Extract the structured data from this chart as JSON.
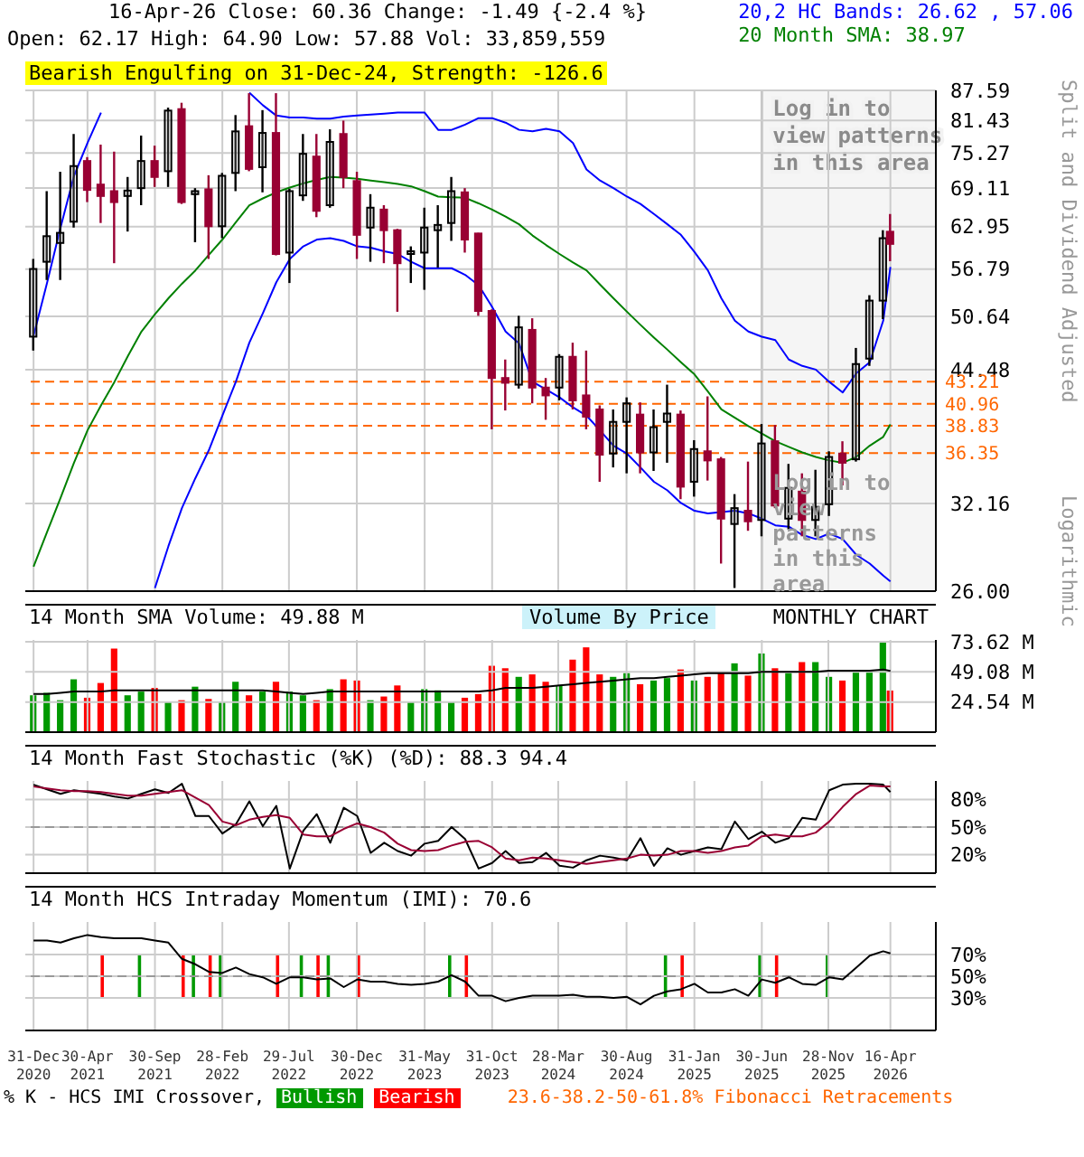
{
  "chart_data": [
    {
      "type": "candlestick",
      "title": "16-Apr-26   Close: 60.36   Change: -1.49 {-2.4 %}",
      "subtitle": "Open: 62.17   High: 64.90   Low: 57.88   Vol: 33,859,559",
      "ylabel": "Split and Dividend Adjusted",
      "annotations": [
        "Bearish Engulfing on 31-Dec-24, Strength: -126.6",
        "Log in to view patterns in this area",
        "Logarithmic"
      ],
      "x": [
        "2020-12-31",
        "2021-01-31",
        "2021-02-28",
        "2021-03-31",
        "2021-04-30",
        "2021-05-31",
        "2021-06-30",
        "2021-07-31",
        "2021-08-31",
        "2021-09-30",
        "2021-10-31",
        "2021-11-30",
        "2021-12-31",
        "2022-01-31",
        "2022-02-28",
        "2022-03-31",
        "2022-04-30",
        "2022-05-31",
        "2022-06-30",
        "2022-07-31",
        "2022-08-31",
        "2022-09-30",
        "2022-10-31",
        "2022-11-30",
        "2022-12-31",
        "2023-01-31",
        "2023-02-28",
        "2023-03-31",
        "2023-04-30",
        "2023-05-31",
        "2023-06-30",
        "2023-07-31",
        "2023-08-31",
        "2023-09-30",
        "2023-10-31",
        "2023-11-30",
        "2023-12-31",
        "2024-01-31",
        "2024-02-29",
        "2024-03-31",
        "2024-04-30",
        "2024-05-31",
        "2024-06-30",
        "2024-07-31",
        "2024-08-31",
        "2024-09-30",
        "2024-10-31",
        "2024-11-30",
        "2024-12-31",
        "2025-01-31",
        "2025-02-28",
        "2025-03-31",
        "2025-04-30",
        "2025-05-31",
        "2025-06-30",
        "2025-07-31",
        "2025-08-31",
        "2025-09-30",
        "2025-10-31",
        "2025-11-30",
        "2025-12-31",
        "2026-01-31",
        "2026-02-28",
        "2026-03-31",
        "2026-04-16"
      ],
      "ohlc": [
        [
          48.2,
          58.2,
          46.6,
          56.8
        ],
        [
          57.8,
          68.6,
          55.3,
          61.5
        ],
        [
          60.5,
          71.9,
          55.3,
          62.0
        ],
        [
          63.7,
          78.8,
          62.8,
          72.9
        ],
        [
          73.8,
          74.5,
          66.8,
          68.8
        ],
        [
          69.7,
          76.8,
          63.5,
          67.8
        ],
        [
          68.6,
          75.5,
          57.6,
          66.8
        ],
        [
          67.8,
          71.0,
          62.2,
          68.7
        ],
        [
          69.1,
          78.5,
          66.3,
          73.8
        ],
        [
          73.8,
          76.6,
          69.3,
          71.0
        ],
        [
          72.0,
          84.0,
          69.3,
          83.4
        ],
        [
          83.7,
          85.0,
          66.5,
          66.8
        ],
        [
          68.1,
          69.1,
          60.6,
          68.6
        ],
        [
          68.9,
          71.3,
          58.2,
          63.0
        ],
        [
          63.0,
          71.7,
          61.2,
          71.2
        ],
        [
          71.7,
          82.5,
          68.6,
          79.3
        ],
        [
          80.3,
          87.0,
          72.0,
          72.4
        ],
        [
          72.7,
          83.5,
          68.4,
          79.0
        ],
        [
          79.0,
          87.0,
          58.7,
          58.9
        ],
        [
          59.1,
          69.0,
          54.9,
          68.6
        ],
        [
          67.9,
          78.8,
          67.0,
          75.1
        ],
        [
          74.6,
          78.8,
          64.4,
          65.4
        ],
        [
          66.3,
          79.7,
          65.9,
          77.3
        ],
        [
          78.8,
          81.4,
          69.1,
          71.0
        ],
        [
          70.3,
          71.9,
          58.2,
          61.7
        ],
        [
          62.8,
          68.1,
          57.8,
          65.9
        ],
        [
          65.6,
          66.3,
          57.6,
          62.4
        ],
        [
          62.4,
          62.6,
          51.2,
          57.6
        ],
        [
          58.9,
          60.0,
          54.9,
          59.3
        ],
        [
          59.1,
          65.9,
          54.0,
          62.8
        ],
        [
          62.4,
          66.3,
          57.0,
          63.2
        ],
        [
          63.5,
          71.0,
          60.8,
          68.6
        ],
        [
          68.4,
          69.1,
          59.1,
          61.0
        ],
        [
          61.9,
          62.0,
          50.7,
          51.3
        ],
        [
          51.3,
          51.5,
          38.5,
          43.6
        ],
        [
          43.6,
          45.6,
          40.3,
          43.1
        ],
        [
          42.9,
          50.7,
          42.5,
          49.3
        ],
        [
          49.0,
          50.4,
          41.0,
          42.6
        ],
        [
          42.6,
          43.6,
          39.4,
          41.8
        ],
        [
          42.6,
          46.2,
          41.3,
          45.9
        ],
        [
          45.9,
          47.5,
          40.4,
          41.3
        ],
        [
          41.8,
          46.6,
          38.5,
          39.7
        ],
        [
          40.4,
          40.8,
          33.9,
          36.2
        ],
        [
          36.3,
          40.4,
          35.1,
          39.2
        ],
        [
          39.2,
          41.6,
          34.6,
          41.0
        ],
        [
          39.9,
          41.1,
          34.6,
          36.4
        ],
        [
          36.4,
          40.4,
          34.8,
          38.7
        ],
        [
          39.2,
          42.9,
          35.5,
          40.0
        ],
        [
          39.9,
          40.3,
          32.5,
          33.5
        ],
        [
          33.9,
          37.5,
          32.7,
          36.7
        ],
        [
          36.5,
          41.7,
          34.0,
          35.7
        ],
        [
          35.8,
          36.0,
          27.8,
          31.0
        ],
        [
          30.6,
          32.9,
          26.2,
          31.8
        ],
        [
          31.6,
          35.6,
          30.1,
          30.8
        ],
        [
          30.9,
          39.0,
          29.7,
          37.2
        ],
        [
          37.4,
          38.9,
          31.8,
          32.0
        ],
        [
          31.0,
          35.4,
          30.2,
          33.4
        ],
        [
          33.1,
          34.6,
          29.7,
          30.9
        ],
        [
          30.9,
          34.9,
          29.7,
          31.9
        ],
        [
          32.1,
          36.5,
          31.2,
          36.0
        ],
        [
          36.3,
          37.4,
          33.6,
          35.5
        ],
        [
          35.8,
          46.9,
          35.6,
          45.1
        ],
        [
          45.7,
          53.3,
          44.9,
          52.6
        ],
        [
          52.6,
          62.4,
          50.3,
          61.2
        ],
        [
          62.17,
          64.9,
          57.88,
          60.36
        ]
      ],
      "colors": [
        "#ffffff",
        "#ffffff",
        "#ffffff",
        "#ffffff",
        "#990033",
        "#990033",
        "#990033",
        "#ffffff",
        "#ffffff",
        "#990033",
        "#ffffff",
        "#990033",
        "#ffffff",
        "#990033",
        "#ffffff",
        "#ffffff",
        "#990033",
        "#ffffff",
        "#990033",
        "#ffffff",
        "#ffffff",
        "#990033",
        "#ffffff",
        "#990033",
        "#990033",
        "#ffffff",
        "#990033",
        "#990033",
        "#ffffff",
        "#ffffff",
        "#ffffff",
        "#ffffff",
        "#990033",
        "#990033",
        "#990033",
        "#990033",
        "#ffffff",
        "#990033",
        "#990033",
        "#ffffff",
        "#990033",
        "#990033",
        "#990033",
        "#ffffff",
        "#ffffff",
        "#990033",
        "#ffffff",
        "#ffffff",
        "#990033",
        "#ffffff",
        "#990033",
        "#990033",
        "#ffffff",
        "#990033",
        "#ffffff",
        "#990033",
        "#ffffff",
        "#990033",
        "#ffffff",
        "#ffffff",
        "#990033",
        "#ffffff",
        "#ffffff",
        "#ffffff",
        "#990033"
      ],
      "series": [
        {
          "type": "line",
          "name": "20,2 HC Bands: 26.62 , 57.06",
          "color": "#0000ff",
          "values": [
            48.3,
            54.9,
            62.8,
            71.2,
            77.1,
            83.0,
            null,
            null,
            null,
            null,
            null,
            null,
            null,
            null,
            null,
            null,
            87.1,
            84.5,
            82.4,
            82.0,
            82.0,
            81.8,
            81.8,
            82.2,
            82.4,
            82.6,
            82.8,
            83.0,
            83.0,
            83.0,
            79.6,
            79.6,
            80.6,
            81.9,
            81.9,
            81.0,
            79.6,
            79.3,
            79.8,
            79.3,
            77.1,
            72.3,
            70.4,
            69.1,
            67.7,
            66.5,
            64.9,
            63.3,
            61.7,
            59.2,
            56.6,
            52.9,
            50.1,
            48.8,
            48.2,
            47.8,
            45.6,
            44.9,
            44.5,
            43.2,
            42.1,
            44.1,
            45.3,
            50.1,
            57.06
          ]
        },
        {
          "type": "line",
          "color": "#0000ff",
          "values": [
            null,
            null,
            null,
            null,
            null,
            null,
            null,
            null,
            null,
            26.2,
            29.0,
            31.8,
            34.2,
            36.6,
            39.8,
            43.2,
            47.5,
            51.0,
            55.0,
            58.2,
            60.0,
            61.0,
            61.2,
            60.8,
            60.0,
            59.8,
            59.3,
            58.9,
            57.8,
            56.9,
            56.9,
            56.9,
            56.0,
            54.6,
            51.8,
            48.8,
            47.4,
            43.2,
            42.4,
            41.6,
            40.6,
            39.8,
            38.4,
            37.0,
            36.3,
            35.1,
            33.9,
            33.2,
            32.2,
            31.6,
            31.4,
            31.5,
            31.6,
            31.4,
            31.0,
            30.5,
            30.4,
            29.8,
            29.5,
            29.9,
            29.5,
            28.4,
            27.8,
            27.0,
            26.62
          ]
        },
        {
          "type": "line",
          "name": "20 Month SMA: 38.97",
          "color": "#008000",
          "values": [
            27.6,
            30.0,
            32.6,
            35.5,
            38.4,
            40.8,
            43.2,
            46.0,
            48.8,
            50.9,
            52.9,
            54.8,
            56.6,
            58.8,
            61.0,
            63.6,
            66.3,
            67.4,
            68.4,
            69.2,
            69.9,
            70.5,
            71.0,
            70.9,
            70.7,
            70.4,
            70.1,
            69.8,
            69.4,
            68.6,
            67.7,
            67.6,
            67.5,
            66.6,
            65.6,
            64.5,
            63.3,
            61.6,
            60.2,
            58.9,
            57.7,
            56.6,
            54.7,
            52.9,
            51.2,
            49.6,
            48.1,
            46.7,
            45.3,
            44.0,
            42.2,
            40.4,
            39.6,
            38.8,
            38.1,
            37.4,
            36.9,
            36.4,
            36.0,
            35.7,
            35.5,
            36.0,
            37.0,
            37.8,
            38.97
          ]
        }
      ],
      "ref_lines": [
        {
          "axis": "y",
          "value": 43.21,
          "label": "43.21",
          "color": "#ff6600",
          "line_style": "dashed"
        },
        {
          "axis": "y",
          "value": 40.96,
          "label": "40.96",
          "color": "#ff6600",
          "line_style": "dashed"
        },
        {
          "axis": "y",
          "value": 38.83,
          "label": "38.83",
          "color": "#ff6600",
          "line_style": "dashed"
        },
        {
          "axis": "y",
          "value": 36.35,
          "label": "36.35",
          "color": "#ff6600",
          "line_style": "dashed"
        }
      ],
      "bands": [
        {
          "axis": "x",
          "from": "2025-06-30",
          "to": "2026-07-28",
          "label": "Log in to view patterns in this area",
          "color": "#f2f2f2"
        }
      ],
      "xlim": [
        "2020-12-12",
        "2026-07-28"
      ],
      "xticks": [
        {
          "value": "2020-12-31",
          "label": null
        },
        {
          "value": "2021-04-30",
          "label": null
        },
        {
          "value": "2021-09-30",
          "label": null
        },
        {
          "value": "2022-02-28",
          "label": null
        },
        {
          "value": "2022-07-29",
          "label": null
        },
        {
          "value": "2022-12-30",
          "label": null
        },
        {
          "value": "2023-05-31",
          "label": null
        },
        {
          "value": "2023-10-31",
          "label": null
        },
        {
          "value": "2024-03-28",
          "label": null
        },
        {
          "value": "2024-08-30",
          "label": null
        },
        {
          "value": "2025-01-31",
          "label": null
        },
        {
          "value": "2025-06-30",
          "label": null
        },
        {
          "value": "2025-11-28",
          "label": null
        },
        {
          "value": "2026-04-16",
          "label": null
        }
      ],
      "ylim": [
        26,
        87.59
      ],
      "log": true,
      "yticks": [
        {
          "value": 26,
          "label": "26.00"
        },
        32.16,
        44.48,
        50.64,
        56.79,
        62.95,
        69.11,
        75.27,
        81.43,
        87.59
      ],
      "grid": true,
      "legend": "top right",
      "tick_labels": "y"
    },
    {
      "type": "bar",
      "title": "14 Month SMA Volume: 49.88 M",
      "annotations": [
        "Volume By Price",
        "MONTHLY CHART"
      ],
      "x": [
        "2020-12-31",
        "2021-01-31",
        "2021-02-28",
        "2021-03-31",
        "2021-04-30",
        "2021-05-31",
        "2021-06-30",
        "2021-07-31",
        "2021-08-31",
        "2021-09-30",
        "2021-10-31",
        "2021-11-30",
        "2021-12-31",
        "2022-01-31",
        "2022-02-28",
        "2022-03-31",
        "2022-04-30",
        "2022-05-31",
        "2022-06-30",
        "2022-07-31",
        "2022-08-31",
        "2022-09-30",
        "2022-10-31",
        "2022-11-30",
        "2022-12-31",
        "2023-01-31",
        "2023-02-28",
        "2023-03-31",
        "2023-04-30",
        "2023-05-31",
        "2023-06-30",
        "2023-07-31",
        "2023-08-31",
        "2023-09-30",
        "2023-10-31",
        "2023-11-30",
        "2023-12-31",
        "2024-01-31",
        "2024-02-29",
        "2024-03-31",
        "2024-04-30",
        "2024-05-31",
        "2024-06-30",
        "2024-07-31",
        "2024-08-31",
        "2024-09-30",
        "2024-10-31",
        "2024-11-30",
        "2024-12-31",
        "2025-01-31",
        "2025-02-28",
        "2025-03-31",
        "2025-04-30",
        "2025-05-31",
        "2025-06-30",
        "2025-07-31",
        "2025-08-31",
        "2025-09-30",
        "2025-10-31",
        "2025-11-30",
        "2025-12-31",
        "2026-01-31",
        "2026-02-28",
        "2026-03-31",
        "2026-04-16"
      ],
      "series": [
        {
          "type": "bar",
          "values": [
            30,
            32,
            26,
            43,
            28,
            40,
            68,
            30,
            33,
            36,
            25,
            26,
            37,
            27,
            25,
            41,
            30,
            33,
            41,
            33,
            30,
            26,
            35,
            43,
            42,
            26,
            29,
            38,
            25,
            35,
            34,
            25,
            28,
            31,
            54,
            52,
            45,
            47,
            41,
            38,
            59,
            69,
            47,
            45,
            48,
            39,
            42,
            44,
            51,
            42,
            45,
            48,
            56,
            46,
            64,
            52,
            48,
            57,
            57,
            45,
            42,
            50,
            50,
            74,
            33.86
          ],
          "colors": [
            "#009900",
            "#009900",
            "#009900",
            "#009900",
            "#ff0000",
            "#ff0000",
            "#ff0000",
            "#009900",
            "#009900",
            "#ff0000",
            "#009900",
            "#ff0000",
            "#009900",
            "#ff0000",
            "#009900",
            "#009900",
            "#ff0000",
            "#009900",
            "#ff0000",
            "#009900",
            "#009900",
            "#ff0000",
            "#009900",
            "#ff0000",
            "#ff0000",
            "#009900",
            "#ff0000",
            "#ff0000",
            "#009900",
            "#009900",
            "#009900",
            "#009900",
            "#ff0000",
            "#ff0000",
            "#ff0000",
            "#ff0000",
            "#009900",
            "#ff0000",
            "#ff0000",
            "#009900",
            "#ff0000",
            "#ff0000",
            "#ff0000",
            "#009900",
            "#009900",
            "#ff0000",
            "#009900",
            "#009900",
            "#ff0000",
            "#009900",
            "#ff0000",
            "#ff0000",
            "#009900",
            "#ff0000",
            "#009900",
            "#ff0000",
            "#009900",
            "#ff0000",
            "#009900",
            "#009900",
            "#ff0000",
            "#009900",
            "#009900",
            "#009900",
            "#ff0000"
          ]
        },
        {
          "type": "line",
          "color": "#000000",
          "values": [
            31,
            31,
            32,
            33,
            33,
            33,
            34,
            34,
            34,
            34,
            34,
            34,
            34,
            34,
            34,
            34,
            34,
            34,
            33,
            32,
            31,
            32,
            33,
            33,
            33,
            33,
            33,
            33,
            33,
            33,
            33,
            33,
            33,
            33,
            34,
            36,
            36,
            36,
            37,
            38,
            39,
            40,
            41,
            42,
            43,
            44,
            44,
            45,
            46,
            47,
            48,
            48,
            48,
            48,
            49,
            49,
            49,
            49,
            49,
            50,
            50,
            50,
            50,
            51,
            49.88
          ]
        }
      ],
      "xlim": [
        "2020-12-12",
        "2026-07-28"
      ],
      "xticks": [
        {
          "value": "2020-12-31",
          "label": null
        },
        {
          "value": "2021-04-30",
          "label": null
        },
        {
          "value": "2021-09-30",
          "label": null
        },
        {
          "value": "2022-02-28",
          "label": null
        },
        {
          "value": "2022-07-29",
          "label": null
        },
        {
          "value": "2022-12-30",
          "label": null
        },
        {
          "value": "2023-05-31",
          "label": null
        },
        {
          "value": "2023-10-31",
          "label": null
        },
        {
          "value": "2024-03-28",
          "label": null
        },
        {
          "value": "2024-08-30",
          "label": null
        },
        {
          "value": "2025-01-31",
          "label": null
        },
        {
          "value": "2025-06-30",
          "label": null
        },
        {
          "value": "2025-11-28",
          "label": null
        },
        {
          "value": "2026-04-16",
          "label": null
        }
      ],
      "ylim": [
        0,
        75
      ],
      "yticks": [
        {
          "value": 24.54,
          "label": "24.54 M"
        },
        {
          "value": 49.08,
          "label": "49.08 M"
        },
        {
          "value": 73.62,
          "label": "73.62 M"
        }
      ],
      "grid": true,
      "tick_labels": "y"
    },
    {
      "type": "line",
      "title": "14 Month Fast Stochastic (%K) (%D): 88.3  94.4",
      "x": [
        "2020-12-31",
        "2021-01-31",
        "2021-02-28",
        "2021-03-31",
        "2021-04-30",
        "2021-05-31",
        "2021-06-30",
        "2021-07-31",
        "2021-08-31",
        "2021-09-30",
        "2021-10-31",
        "2021-11-30",
        "2021-12-31",
        "2022-01-31",
        "2022-02-28",
        "2022-03-31",
        "2022-04-30",
        "2022-05-31",
        "2022-06-30",
        "2022-07-31",
        "2022-08-31",
        "2022-09-30",
        "2022-10-31",
        "2022-11-30",
        "2022-12-31",
        "2023-01-31",
        "2023-02-28",
        "2023-03-31",
        "2023-04-30",
        "2023-05-31",
        "2023-06-30",
        "2023-07-31",
        "2023-08-31",
        "2023-09-30",
        "2023-10-31",
        "2023-11-30",
        "2023-12-31",
        "2024-01-31",
        "2024-02-29",
        "2024-03-31",
        "2024-04-30",
        "2024-05-31",
        "2024-06-30",
        "2024-07-31",
        "2024-08-31",
        "2024-09-30",
        "2024-10-31",
        "2024-11-30",
        "2024-12-31",
        "2025-01-31",
        "2025-02-28",
        "2025-03-31",
        "2025-04-30",
        "2025-05-31",
        "2025-06-30",
        "2025-07-31",
        "2025-08-31",
        "2025-09-30",
        "2025-10-31",
        "2025-11-30",
        "2025-12-31",
        "2026-01-31",
        "2026-02-28",
        "2026-03-31",
        "2026-04-16"
      ],
      "series": [
        {
          "color": "#000000",
          "values": [
            96,
            91,
            86,
            90,
            88,
            86,
            83,
            81,
            86,
            91,
            87,
            97,
            62,
            62,
            43,
            53,
            78,
            51,
            73,
            5,
            46,
            64,
            33,
            71,
            62,
            22,
            33,
            24,
            19,
            32,
            35,
            50,
            37,
            5,
            11,
            24,
            11,
            12,
            22,
            8,
            6,
            14,
            19,
            17,
            14,
            38,
            8,
            27,
            20,
            24,
            28,
            26,
            56,
            37,
            45,
            33,
            38,
            60,
            58,
            90,
            96,
            97,
            97,
            96,
            88
          ]
        },
        {
          "color": "#990033",
          "values": [
            94,
            92,
            90,
            89,
            89,
            88,
            86,
            84,
            84,
            86,
            88,
            90,
            82,
            74,
            56,
            52,
            58,
            61,
            63,
            60,
            42,
            40,
            40,
            48,
            54,
            50,
            44,
            32,
            25,
            24,
            25,
            30,
            34,
            35,
            28,
            16,
            14,
            17,
            16,
            14,
            12,
            10,
            12,
            14,
            16,
            20,
            19,
            20,
            24,
            24,
            22,
            24,
            28,
            30,
            40,
            42,
            40,
            40,
            44,
            56,
            72,
            86,
            95,
            94,
            94
          ]
        }
      ],
      "ref_lines": [
        {
          "axis": "y",
          "value": 50,
          "color": "#999999",
          "line_style": "dashed"
        }
      ],
      "xlim": [
        "2020-12-12",
        "2026-07-28"
      ],
      "xticks": [
        {
          "value": "2020-12-31",
          "label": null
        },
        {
          "value": "2021-04-30",
          "label": null
        },
        {
          "value": "2021-09-30",
          "label": null
        },
        {
          "value": "2022-02-28",
          "label": null
        },
        {
          "value": "2022-07-29",
          "label": null
        },
        {
          "value": "2022-12-30",
          "label": null
        },
        {
          "value": "2023-05-31",
          "label": null
        },
        {
          "value": "2023-10-31",
          "label": null
        },
        {
          "value": "2024-03-28",
          "label": null
        },
        {
          "value": "2024-08-30",
          "label": null
        },
        {
          "value": "2025-01-31",
          "label": null
        },
        {
          "value": "2025-06-30",
          "label": null
        },
        {
          "value": "2025-11-28",
          "label": null
        },
        {
          "value": "2026-04-16",
          "label": null
        }
      ],
      "ylim": [
        0,
        100
      ],
      "yticks": [
        {
          "value": 20,
          "label": "20%"
        },
        {
          "value": 80,
          "label": "80%"
        },
        {
          "value": 50,
          "label": "50%"
        }
      ],
      "grid": true,
      "tick_labels": "y"
    },
    {
      "type": "line",
      "title": "14 Month HCS Intraday Momentum (IMI): 70.6",
      "legend_title": "% K - HCS IMI Crossover,",
      "annotations": [
        "23.6-38.2-50-61.8% Fibonacci Retracements"
      ],
      "x": [
        "2020-12-31",
        "2021-01-31",
        "2021-02-28",
        "2021-03-31",
        "2021-04-30",
        "2021-05-31",
        "2021-06-30",
        "2021-07-31",
        "2021-08-31",
        "2021-09-30",
        "2021-10-31",
        "2021-11-30",
        "2021-12-31",
        "2022-01-31",
        "2022-02-28",
        "2022-03-31",
        "2022-04-30",
        "2022-05-31",
        "2022-06-30",
        "2022-07-31",
        "2022-08-31",
        "2022-09-30",
        "2022-10-31",
        "2022-11-30",
        "2022-12-31",
        "2023-01-31",
        "2023-02-28",
        "2023-03-31",
        "2023-04-30",
        "2023-05-31",
        "2023-06-30",
        "2023-07-31",
        "2023-08-31",
        "2023-09-30",
        "2023-10-31",
        "2023-11-30",
        "2023-12-31",
        "2024-01-31",
        "2024-02-29",
        "2024-03-31",
        "2024-04-30",
        "2024-05-31",
        "2024-06-30",
        "2024-07-31",
        "2024-08-31",
        "2024-09-30",
        "2024-10-31",
        "2024-11-30",
        "2024-12-31",
        "2025-01-31",
        "2025-02-28",
        "2025-03-31",
        "2025-04-30",
        "2025-05-31",
        "2025-06-30",
        "2025-07-31",
        "2025-08-31",
        "2025-09-30",
        "2025-10-31",
        "2025-11-30",
        "2025-12-31",
        "2026-01-31",
        "2026-02-28",
        "2026-03-31",
        "2026-04-16"
      ],
      "series": [
        {
          "type": "bar",
          "name": "Bullish",
          "color": "#009900",
          "values": [
            null,
            null,
            null,
            null,
            null,
            null,
            null,
            null,
            40,
            null,
            null,
            null,
            40,
            null,
            40,
            null,
            null,
            null,
            null,
            null,
            40,
            null,
            40,
            null,
            null,
            null,
            null,
            null,
            null,
            null,
            null,
            40,
            null,
            null,
            null,
            null,
            null,
            null,
            null,
            null,
            null,
            null,
            null,
            null,
            null,
            null,
            null,
            40,
            null,
            null,
            null,
            null,
            null,
            null,
            40,
            null,
            null,
            null,
            null,
            40,
            null,
            null,
            null,
            null,
            null
          ],
          "base": [
            null,
            null,
            null,
            null,
            null,
            null,
            null,
            null,
            30,
            null,
            null,
            null,
            30,
            null,
            30,
            null,
            null,
            null,
            null,
            null,
            30,
            null,
            30,
            null,
            null,
            null,
            null,
            null,
            null,
            null,
            null,
            30,
            null,
            null,
            null,
            null,
            null,
            null,
            null,
            null,
            null,
            null,
            null,
            null,
            null,
            null,
            null,
            30,
            null,
            null,
            null,
            null,
            null,
            null,
            30,
            null,
            null,
            null,
            null,
            30,
            null,
            null,
            null,
            null,
            null
          ]
        },
        {
          "type": "bar",
          "name": "Bearish",
          "color": "#ff0000",
          "values": [
            null,
            null,
            null,
            null,
            null,
            40,
            null,
            null,
            null,
            null,
            null,
            40,
            null,
            40,
            null,
            null,
            null,
            null,
            40,
            null,
            null,
            40,
            null,
            null,
            40,
            null,
            null,
            null,
            null,
            null,
            null,
            null,
            40,
            null,
            null,
            null,
            null,
            null,
            null,
            null,
            null,
            null,
            null,
            null,
            null,
            null,
            null,
            null,
            40,
            null,
            null,
            null,
            null,
            null,
            null,
            40,
            null,
            null,
            null,
            null,
            null,
            null,
            null,
            null,
            null
          ],
          "base": [
            null,
            null,
            null,
            null,
            null,
            30,
            null,
            null,
            null,
            null,
            null,
            30,
            null,
            30,
            null,
            null,
            null,
            null,
            30,
            null,
            null,
            30,
            null,
            null,
            30,
            null,
            null,
            null,
            null,
            null,
            null,
            null,
            30,
            null,
            null,
            null,
            null,
            null,
            null,
            null,
            null,
            null,
            null,
            null,
            null,
            null,
            null,
            null,
            30,
            null,
            null,
            null,
            null,
            null,
            null,
            30,
            null,
            null,
            null,
            null,
            null,
            null,
            null,
            null,
            null
          ]
        },
        {
          "type": "line",
          "color": "#000000",
          "values": [
            83,
            83,
            81,
            85,
            88,
            86,
            85,
            85,
            85,
            83,
            81,
            66,
            61,
            54,
            53,
            58,
            52,
            49,
            43,
            49,
            49,
            47,
            48,
            40,
            47,
            45,
            45,
            43,
            42,
            43,
            45,
            51,
            45,
            32,
            32,
            27,
            30,
            32,
            32,
            32,
            33,
            31,
            31,
            30,
            31,
            24,
            32,
            36,
            38,
            43,
            35,
            35,
            38,
            32,
            47,
            44,
            49,
            43,
            42,
            49,
            47,
            58,
            69,
            73,
            71
          ]
        }
      ],
      "ref_lines": [
        {
          "axis": "y",
          "value": 50,
          "color": "#999999",
          "line_style": "dashed"
        }
      ],
      "xlim": [
        "2020-12-12",
        "2026-07-28"
      ],
      "xticks": [
        {
          "value": "2020-12-31",
          "label": "31-Dec 2020"
        },
        {
          "value": "2021-04-30",
          "label": "30-Apr 2021"
        },
        {
          "value": "2021-09-30",
          "label": "30-Sep 2021"
        },
        {
          "value": "2022-02-28",
          "label": "28-Feb 2022"
        },
        {
          "value": "2022-07-29",
          "label": "29-Jul 2022"
        },
        {
          "value": "2022-12-30",
          "label": "30-Dec 2022"
        },
        {
          "value": "2023-05-31",
          "label": "31-May 2023"
        },
        {
          "value": "2023-10-31",
          "label": "31-Oct 2023"
        },
        {
          "value": "2024-03-28",
          "label": "28-Mar 2024"
        },
        {
          "value": "2024-08-30",
          "label": "30-Aug 2024"
        },
        {
          "value": "2025-01-31",
          "label": "31-Jan 2025"
        },
        {
          "value": "2025-06-30",
          "label": "30-Jun 2025"
        },
        {
          "value": "2025-11-28",
          "label": "28-Nov 2025"
        },
        {
          "value": "2026-04-16",
          "label": "16-Apr 2026"
        }
      ],
      "ylim": [
        0,
        100
      ],
      "yticks": [
        {
          "value": 30,
          "label": "30%"
        },
        {
          "value": 50,
          "label": "50%"
        },
        {
          "value": 70,
          "label": "70%"
        }
      ],
      "grid": true,
      "legend": "bottom"
    }
  ]
}
